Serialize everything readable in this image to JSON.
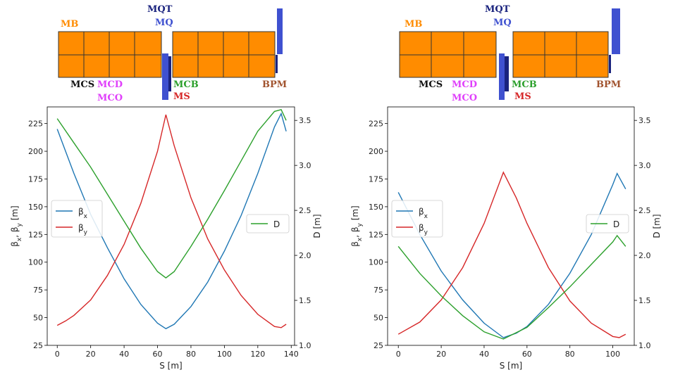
{
  "colors": {
    "betax": "#1f77b4",
    "betay": "#d62728",
    "disp": "#2ca02c",
    "dipole": "#ff8c00",
    "quad": "#3f51d0",
    "quad_dark": "#1a237e",
    "pink": "#e040fb"
  },
  "element_labels": {
    "mb": "MB",
    "mqt": "MQT",
    "mq": "MQ",
    "mcs": "MCS",
    "mcd": "MCD",
    "mco": "MCO",
    "mcb": "MCB",
    "ms": "MS",
    "bpm": "BPM"
  },
  "chart_data": [
    {
      "type": "line",
      "xlabel": "S [m]",
      "ylabel": "β_x, β_y [m]",
      "y2label": "D [m]",
      "xlim": [
        -6,
        142
      ],
      "ylim": [
        25,
        240
      ],
      "y2lim": [
        1.0,
        3.65
      ],
      "xticks": [
        0,
        20,
        40,
        60,
        80,
        100,
        120,
        140
      ],
      "yticks": [
        25,
        50,
        75,
        100,
        125,
        150,
        175,
        200,
        225
      ],
      "y2ticks": [
        1.0,
        1.5,
        2.0,
        2.5,
        3.0,
        3.5
      ],
      "legend_left": {
        "entries": [
          "β_x",
          "β_y"
        ],
        "placement": "center-left"
      },
      "legend_right": {
        "entries": [
          "D"
        ],
        "placement": "center-right"
      },
      "series": [
        {
          "name": "β_x",
          "axis": "left",
          "color": "#1f77b4",
          "x": [
            0,
            10,
            20,
            30,
            40,
            50,
            60,
            65,
            70,
            80,
            90,
            100,
            110,
            120,
            130,
            134,
            137
          ],
          "y": [
            220,
            180,
            143,
            113,
            85,
            62,
            45,
            40,
            44,
            60,
            82,
            110,
            142,
            180,
            222,
            234,
            218
          ]
        },
        {
          "name": "β_y",
          "axis": "left",
          "color": "#d62728",
          "x": [
            0,
            5,
            10,
            20,
            30,
            40,
            50,
            60,
            65,
            70,
            80,
            90,
            100,
            110,
            120,
            130,
            134,
            137
          ],
          "y": [
            43,
            47,
            52,
            66,
            88,
            116,
            153,
            200,
            233,
            205,
            158,
            121,
            93,
            70,
            53,
            42,
            41,
            44
          ]
        },
        {
          "name": "D",
          "axis": "right",
          "color": "#2ca02c",
          "x": [
            0,
            10,
            20,
            30,
            40,
            50,
            60,
            65,
            70,
            80,
            90,
            100,
            110,
            120,
            130,
            134,
            137
          ],
          "y": [
            3.52,
            3.25,
            2.98,
            2.68,
            2.38,
            2.08,
            1.82,
            1.75,
            1.82,
            2.1,
            2.4,
            2.72,
            3.05,
            3.38,
            3.6,
            3.62,
            3.5
          ]
        }
      ]
    },
    {
      "type": "line",
      "xlabel": "S [m]",
      "ylabel": "β_x, β_y [m]",
      "y2label": "D [m]",
      "xlim": [
        -5,
        110
      ],
      "ylim": [
        25,
        240
      ],
      "y2lim": [
        1.0,
        3.65
      ],
      "xticks": [
        0,
        20,
        40,
        60,
        80,
        100
      ],
      "yticks": [
        25,
        50,
        75,
        100,
        125,
        150,
        175,
        200,
        225
      ],
      "y2ticks": [
        1.0,
        1.5,
        2.0,
        2.5,
        3.0,
        3.5
      ],
      "legend_left": {
        "entries": [
          "β_x",
          "β_y"
        ],
        "placement": "center-left"
      },
      "legend_right": {
        "entries": [
          "D"
        ],
        "placement": "center-right"
      },
      "series": [
        {
          "name": "β_x",
          "axis": "left",
          "color": "#1f77b4",
          "x": [
            0,
            10,
            20,
            30,
            40,
            49,
            55,
            60,
            70,
            80,
            90,
            100,
            102,
            106
          ],
          "y": [
            163,
            125,
            92,
            66,
            45,
            32,
            36,
            42,
            62,
            90,
            125,
            170,
            180,
            166
          ]
        },
        {
          "name": "β_y",
          "axis": "left",
          "color": "#d62728",
          "x": [
            0,
            10,
            20,
            30,
            40,
            49,
            55,
            60,
            70,
            80,
            90,
            100,
            103,
            106
          ],
          "y": [
            35,
            46,
            66,
            95,
            135,
            181,
            158,
            135,
            95,
            65,
            45,
            33,
            32,
            35
          ]
        },
        {
          "name": "D",
          "axis": "right",
          "color": "#2ca02c",
          "x": [
            0,
            10,
            20,
            30,
            40,
            49,
            60,
            70,
            80,
            90,
            100,
            102,
            106
          ],
          "y": [
            2.1,
            1.8,
            1.55,
            1.33,
            1.15,
            1.07,
            1.2,
            1.42,
            1.65,
            1.9,
            2.15,
            2.22,
            2.1
          ]
        }
      ]
    }
  ]
}
